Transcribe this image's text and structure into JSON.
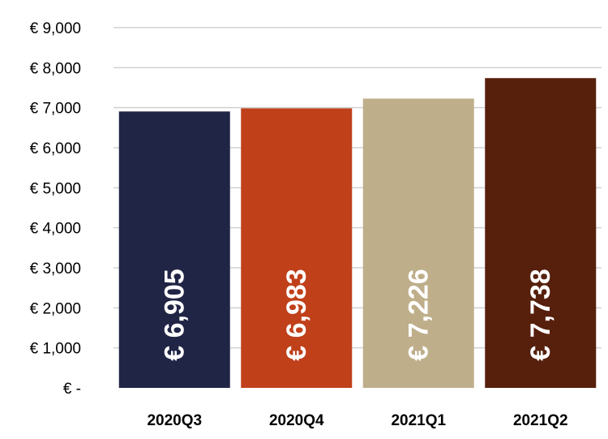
{
  "chart_data": {
    "type": "bar",
    "categories": [
      "2020Q3",
      "2020Q4",
      "2021Q1",
      "2021Q2"
    ],
    "values": [
      6905,
      6983,
      7226,
      7738
    ],
    "data_labels": [
      "€ 6,905",
      "€ 6,983",
      "€ 7,226",
      "€ 7,738"
    ],
    "colors": [
      "#202545",
      "#C0401A",
      "#BEAE8A",
      "#56200C"
    ],
    "title": "",
    "xlabel": "",
    "ylabel": "",
    "ylim": [
      0,
      9000
    ],
    "yticks": [
      0,
      1000,
      2000,
      3000,
      4000,
      5000,
      6000,
      7000,
      8000,
      9000
    ],
    "ytick_labels": [
      "€ -",
      "€ 1,000",
      "€ 2,000",
      "€ 3,000",
      "€ 4,000",
      "€ 5,000",
      "€ 6,000",
      "€ 7,000",
      "€ 8,000",
      "€ 9,000"
    ],
    "grid": true,
    "legend": "none"
  }
}
